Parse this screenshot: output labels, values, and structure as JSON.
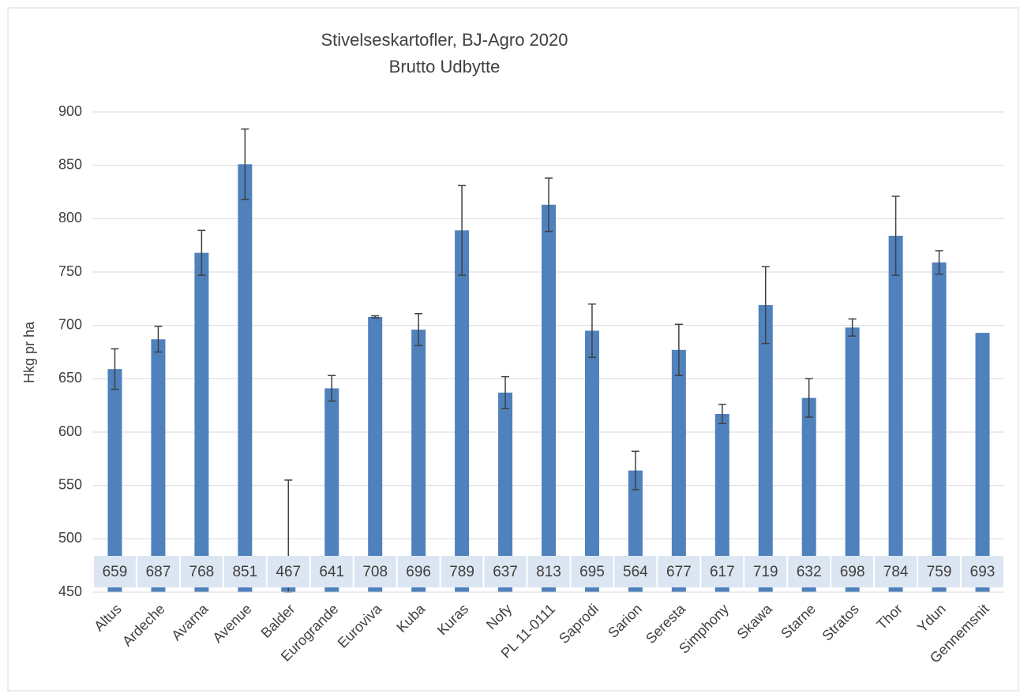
{
  "chart_data": {
    "type": "bar",
    "title": "Stivelseskartofler, BJ-Agro 2020",
    "subtitle": "Brutto Udbytte",
    "y_label": "Hkg pr ha",
    "categories": [
      "Altus",
      "Ardeche",
      "Avarna",
      "Avenue",
      "Balder",
      "Eurogrande",
      "Euroviva",
      "Kuba",
      "Kuras",
      "Nofy",
      "PL 11-0111",
      "Saprodi",
      "Sarion",
      "Seresta",
      "Simphony",
      "Skawa",
      "Starne",
      "Stratos",
      "Thor",
      "Ydun",
      "Gennemsnit"
    ],
    "values": [
      659,
      687,
      768,
      851,
      467,
      641,
      708,
      696,
      789,
      637,
      813,
      695,
      564,
      677,
      617,
      719,
      632,
      698,
      784,
      759,
      693
    ],
    "errors": [
      19,
      12,
      21,
      33,
      88,
      12,
      1,
      15,
      42,
      15,
      25,
      25,
      18,
      24,
      9,
      36,
      18,
      8,
      37,
      11,
      null
    ],
    "color": "#4f81bd",
    "ylim": [
      450,
      900
    ],
    "yticks": [
      450,
      500,
      550,
      600,
      650,
      700,
      750,
      800,
      850,
      900
    ],
    "grid": true
  }
}
